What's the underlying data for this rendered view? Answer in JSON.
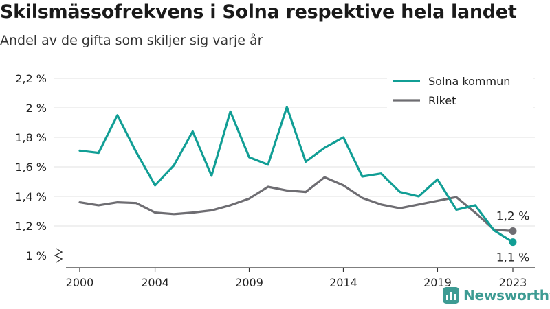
{
  "header": {
    "title": "Skilsmässofrekvens i Solna respektive hela landet",
    "subtitle": "Andel av de gifta som skiljer sig varje år"
  },
  "brand": {
    "name": "Newsworthy",
    "color": "#3d9b93"
  },
  "chart_data": {
    "type": "line",
    "title": "Skilsmässofrekvens i Solna respektive hela landet",
    "subtitle": "Andel av de gifta som skiljer sig varje år",
    "x": [
      2000,
      2001,
      2002,
      2003,
      2004,
      2005,
      2006,
      2007,
      2008,
      2009,
      2010,
      2011,
      2012,
      2013,
      2014,
      2015,
      2016,
      2017,
      2018,
      2019,
      2020,
      2021,
      2022,
      2023
    ],
    "x_ticks": [
      2000,
      2004,
      2009,
      2014,
      2019,
      2023
    ],
    "x_tick_labels": [
      "2000",
      "2004",
      "2009",
      "2014",
      "2019",
      "2023"
    ],
    "y_ticks": [
      1.0,
      1.2,
      1.4,
      1.6,
      1.8,
      2.0,
      2.2
    ],
    "y_tick_labels": [
      "1 %",
      "1,2 %",
      "1,4 %",
      "1,6 %",
      "1,8 %",
      "2 %",
      "2,2 %"
    ],
    "ylim": [
      1.0,
      2.2
    ],
    "y_axis_break": true,
    "grid": "horizontal",
    "legend_position": "top-right",
    "series": [
      {
        "name": "Solna kommun",
        "color": "#119e95",
        "values": [
          1.71,
          1.695,
          1.95,
          1.7,
          1.475,
          1.61,
          1.84,
          1.54,
          1.975,
          1.665,
          1.615,
          2.005,
          1.635,
          1.73,
          1.8,
          1.535,
          1.555,
          1.43,
          1.4,
          1.515,
          1.31,
          1.34,
          1.17,
          1.09
        ],
        "end_label": "1,1 %"
      },
      {
        "name": "Riket",
        "color": "#6e6d72",
        "values": [
          1.36,
          1.34,
          1.36,
          1.355,
          1.29,
          1.28,
          1.29,
          1.305,
          1.34,
          1.385,
          1.465,
          1.44,
          1.43,
          1.53,
          1.475,
          1.39,
          1.345,
          1.32,
          1.345,
          1.37,
          1.395,
          1.29,
          1.175,
          1.165
        ],
        "end_label": "1,2 %"
      }
    ]
  }
}
